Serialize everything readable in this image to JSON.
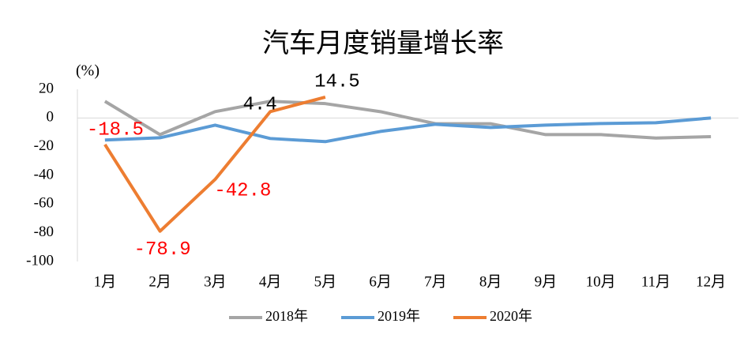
{
  "chart_data": {
    "type": "line",
    "title": "汽车月度销量增长率",
    "y_label": "(%)",
    "categories": [
      "1月",
      "2月",
      "3月",
      "4月",
      "5月",
      "6月",
      "7月",
      "8月",
      "9月",
      "10月",
      "11月",
      "12月"
    ],
    "series": [
      {
        "name": "2018年",
        "color": "#a5a5a5",
        "values": [
          11.6,
          -11.6,
          4.4,
          11.6,
          10,
          4.4,
          -4,
          -4,
          -11.6,
          -11.6,
          -14,
          -13
        ]
      },
      {
        "name": "2019年",
        "color": "#5b9bd5",
        "values": [
          -15.4,
          -13.8,
          -5,
          -14.3,
          -16.5,
          -9.4,
          -4.4,
          -6.6,
          -5,
          -3.9,
          -3.3,
          0
        ]
      },
      {
        "name": "2020年",
        "color": "#ed7d31",
        "values": [
          -18.5,
          -78.9,
          -42.8,
          4.4,
          14.5,
          null,
          null,
          null,
          null,
          null,
          null,
          null
        ],
        "data_labels": true
      }
    ],
    "ylim": [
      -100,
      20
    ],
    "yticks": [
      20,
      0,
      -20,
      -40,
      -60,
      -80,
      -100
    ],
    "legend": "bottom"
  }
}
